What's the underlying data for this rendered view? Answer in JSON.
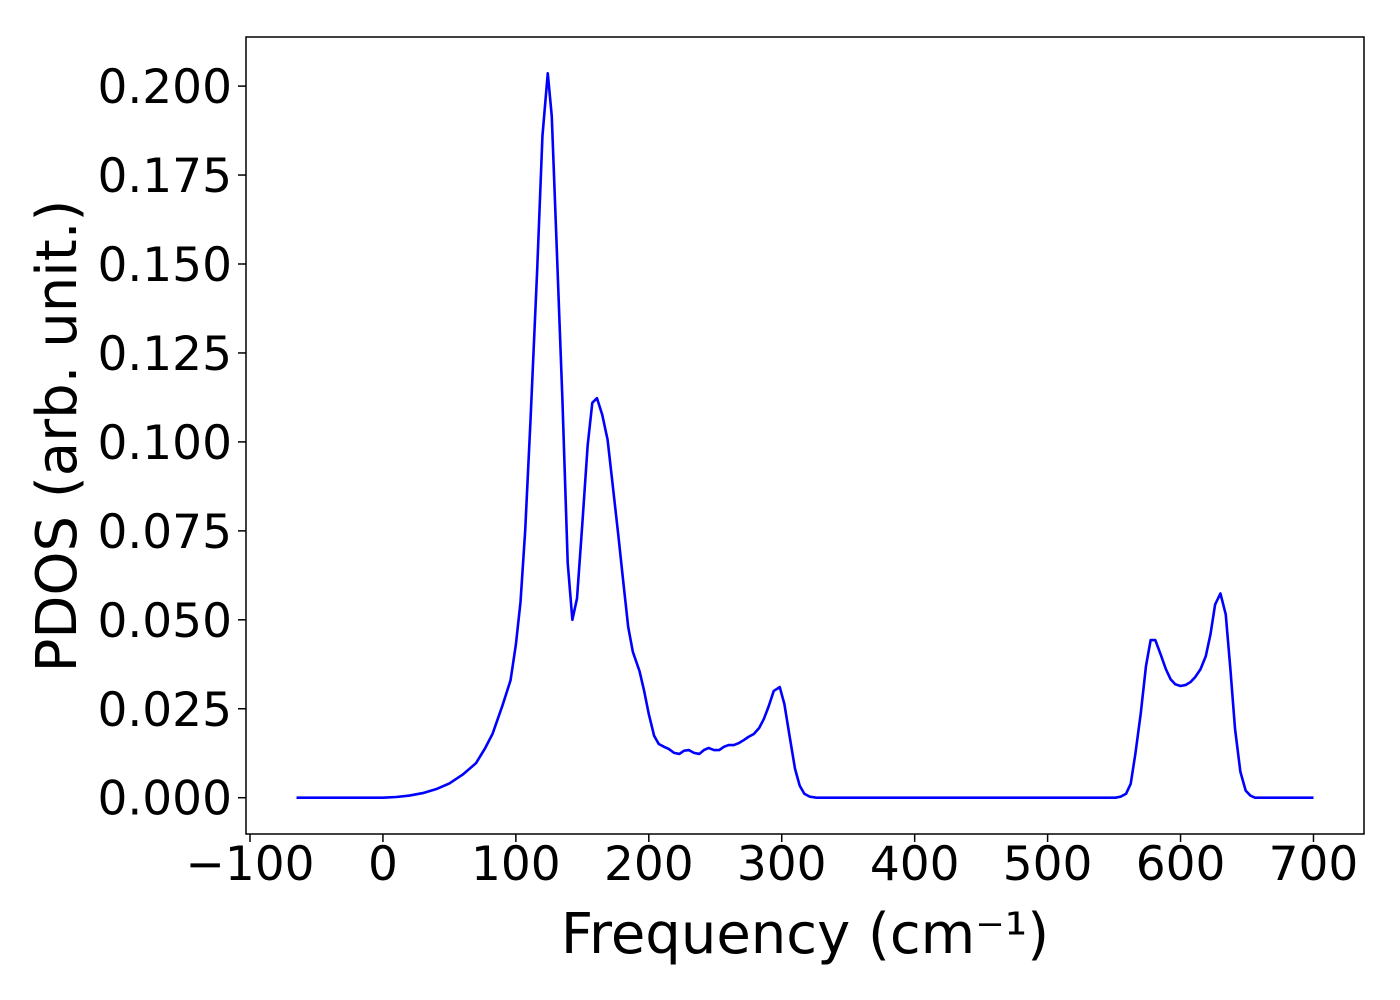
{
  "chart_data": {
    "type": "line",
    "xlabel": "Frequency (cm⁻¹)",
    "ylabel": "PDOS (arb. unit.)",
    "xlim": [
      -103,
      738
    ],
    "ylim": [
      -0.0102,
      0.2138
    ],
    "xticks": [
      {
        "value": -100,
        "label": "−100"
      },
      0,
      100,
      200,
      300,
      400,
      500,
      600,
      700
    ],
    "yticks": [
      {
        "value": 0,
        "label": "0.000"
      },
      {
        "value": 0.025,
        "label": "0.025"
      },
      {
        "value": 0.05,
        "label": "0.050"
      },
      {
        "value": 0.075,
        "label": "0.075"
      },
      {
        "value": 0.1,
        "label": "0.100"
      },
      {
        "value": 0.125,
        "label": "0.125"
      },
      {
        "value": 0.15,
        "label": "0.150"
      },
      {
        "value": 0.175,
        "label": "0.175"
      },
      {
        "value": 0.2,
        "label": "0.200"
      }
    ],
    "color": "#0000ff",
    "x": [
      -65,
      0,
      10,
      20,
      30,
      40,
      50,
      60,
      70,
      77,
      82.5,
      90,
      96,
      100,
      103.5,
      107,
      111,
      116,
      120,
      124,
      127,
      130.5,
      135,
      139,
      142.5,
      146,
      150,
      154,
      157.5,
      161,
      165,
      169,
      172.5,
      177,
      181,
      184.5,
      188,
      193,
      196.5,
      200,
      204,
      207.5,
      211.5,
      215,
      219,
      223,
      226.5,
      230,
      234,
      238,
      241.5,
      245,
      249,
      253,
      256.5,
      260,
      264,
      268,
      271.5,
      275,
      279,
      283,
      286.5,
      290,
      294,
      298.5,
      302,
      306,
      310,
      313.5,
      317,
      321,
      326,
      551,
      555,
      559,
      562.5,
      566,
      570,
      574,
      577.5,
      581,
      585,
      589,
      592.5,
      596,
      600,
      604,
      607.5,
      611,
      615,
      619,
      622.5,
      626,
      630,
      634,
      637.5,
      641,
      645,
      649,
      652.5,
      656,
      700
    ],
    "values": [
      0,
      0,
      0.0002,
      0.0006,
      0.0013,
      0.0024,
      0.004,
      0.0065,
      0.0097,
      0.014,
      0.018,
      0.026,
      0.033,
      0.043,
      0.055,
      0.075,
      0.106,
      0.148,
      0.186,
      0.2036,
      0.1916,
      0.157,
      0.112,
      0.066,
      0.05,
      0.056,
      0.077,
      0.099,
      0.111,
      0.1123,
      0.1076,
      0.1006,
      0.089,
      0.074,
      0.06,
      0.048,
      0.041,
      0.0356,
      0.03,
      0.0235,
      0.0174,
      0.0151,
      0.0143,
      0.0137,
      0.0126,
      0.0123,
      0.0132,
      0.0134,
      0.0126,
      0.0123,
      0.0134,
      0.014,
      0.0134,
      0.0134,
      0.0143,
      0.0148,
      0.0148,
      0.0154,
      0.0162,
      0.0171,
      0.0179,
      0.0196,
      0.0221,
      0.0255,
      0.03,
      0.0311,
      0.0263,
      0.0171,
      0.0081,
      0.0034,
      0.0011,
      0.0003,
      0,
      0,
      0.0003,
      0.0011,
      0.0039,
      0.0123,
      0.0235,
      0.037,
      0.0443,
      0.0443,
      0.0403,
      0.0361,
      0.0333,
      0.0319,
      0.0314,
      0.0317,
      0.0325,
      0.0339,
      0.0361,
      0.0398,
      0.0459,
      0.0543,
      0.0574,
      0.0515,
      0.0361,
      0.0193,
      0.0073,
      0.002,
      0.0006,
      0,
      0
    ]
  }
}
